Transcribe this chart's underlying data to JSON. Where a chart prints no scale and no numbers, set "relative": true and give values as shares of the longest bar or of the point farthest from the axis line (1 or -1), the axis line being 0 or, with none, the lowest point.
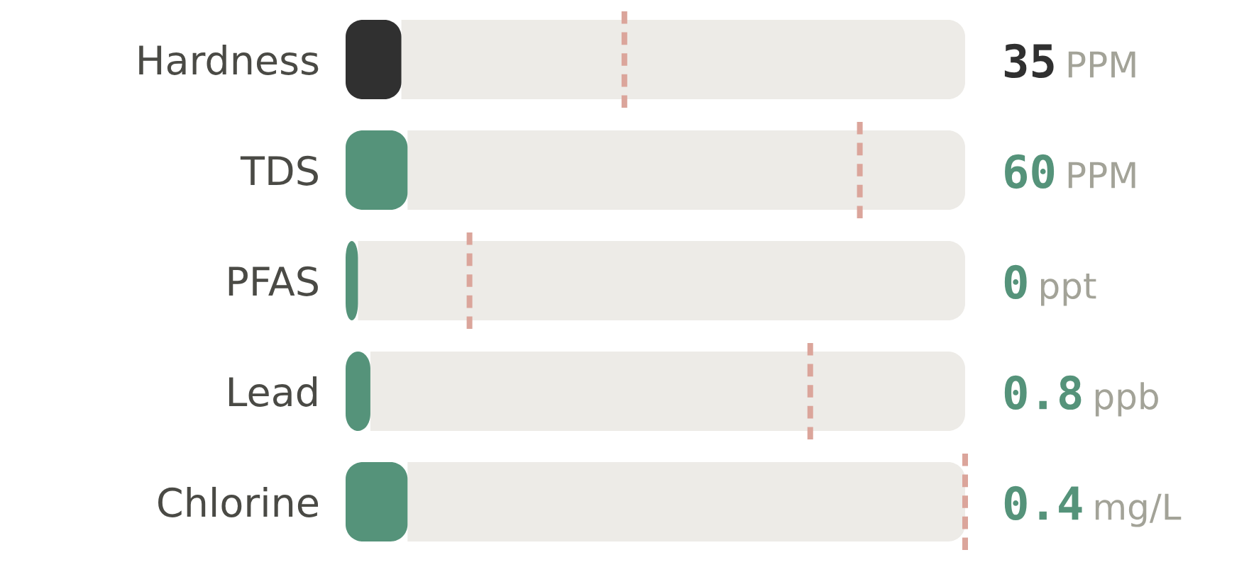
{
  "chart_data": [
    {
      "type": "bar",
      "orientation": "horizontal",
      "stacked": true,
      "relative": true,
      "categories": [
        "Hardness"
      ],
      "series": [
        {
          "color": "#303030",
          "values": [
            0.09
          ]
        },
        {
          "color": "#edebe7",
          "values": [
            0.91
          ]
        }
      ],
      "ref_lines": [
        {
          "axis": "x",
          "value": 0.45,
          "color": "#dba59b",
          "line_style": "dashed"
        }
      ],
      "annotations": [
        "35 PPM"
      ]
    },
    {
      "type": "bar",
      "orientation": "horizontal",
      "stacked": true,
      "relative": true,
      "categories": [
        "TDS"
      ],
      "series": [
        {
          "color": "#55937a",
          "values": [
            0.1
          ]
        },
        {
          "color": "#edebe7",
          "values": [
            0.9
          ]
        }
      ],
      "ref_lines": [
        {
          "axis": "x",
          "value": 0.83,
          "color": "#dba59b",
          "line_style": "dashed"
        }
      ],
      "annotations": [
        "60 PPM"
      ]
    },
    {
      "type": "bar",
      "orientation": "horizontal",
      "stacked": true,
      "relative": true,
      "categories": [
        "PFAS"
      ],
      "series": [
        {
          "color": "#55937a",
          "values": [
            0.02
          ]
        },
        {
          "color": "#edebe7",
          "values": [
            0.98
          ]
        }
      ],
      "ref_lines": [
        {
          "axis": "x",
          "value": 0.2,
          "color": "#dba59b",
          "line_style": "dashed"
        }
      ],
      "annotations": [
        "0 ppt"
      ]
    },
    {
      "type": "bar",
      "orientation": "horizontal",
      "stacked": true,
      "relative": true,
      "categories": [
        "Lead"
      ],
      "series": [
        {
          "color": "#55937a",
          "values": [
            0.04
          ]
        },
        {
          "color": "#edebe7",
          "values": [
            0.96
          ]
        }
      ],
      "ref_lines": [
        {
          "axis": "x",
          "value": 0.75,
          "color": "#dba59b",
          "line_style": "dashed"
        }
      ],
      "annotations": [
        "0.8 ppb"
      ]
    },
    {
      "type": "bar",
      "orientation": "horizontal",
      "stacked": true,
      "relative": true,
      "categories": [
        "Chlorine"
      ],
      "series": [
        {
          "color": "#55937a",
          "values": [
            0.1
          ]
        },
        {
          "color": "#edebe7",
          "values": [
            0.9
          ]
        }
      ],
      "ref_lines": [
        {
          "axis": "x",
          "value": 1.0,
          "color": "#dba59b",
          "line_style": "dashed"
        }
      ],
      "annotations": [
        "0.4 mg/L"
      ]
    }
  ]
}
